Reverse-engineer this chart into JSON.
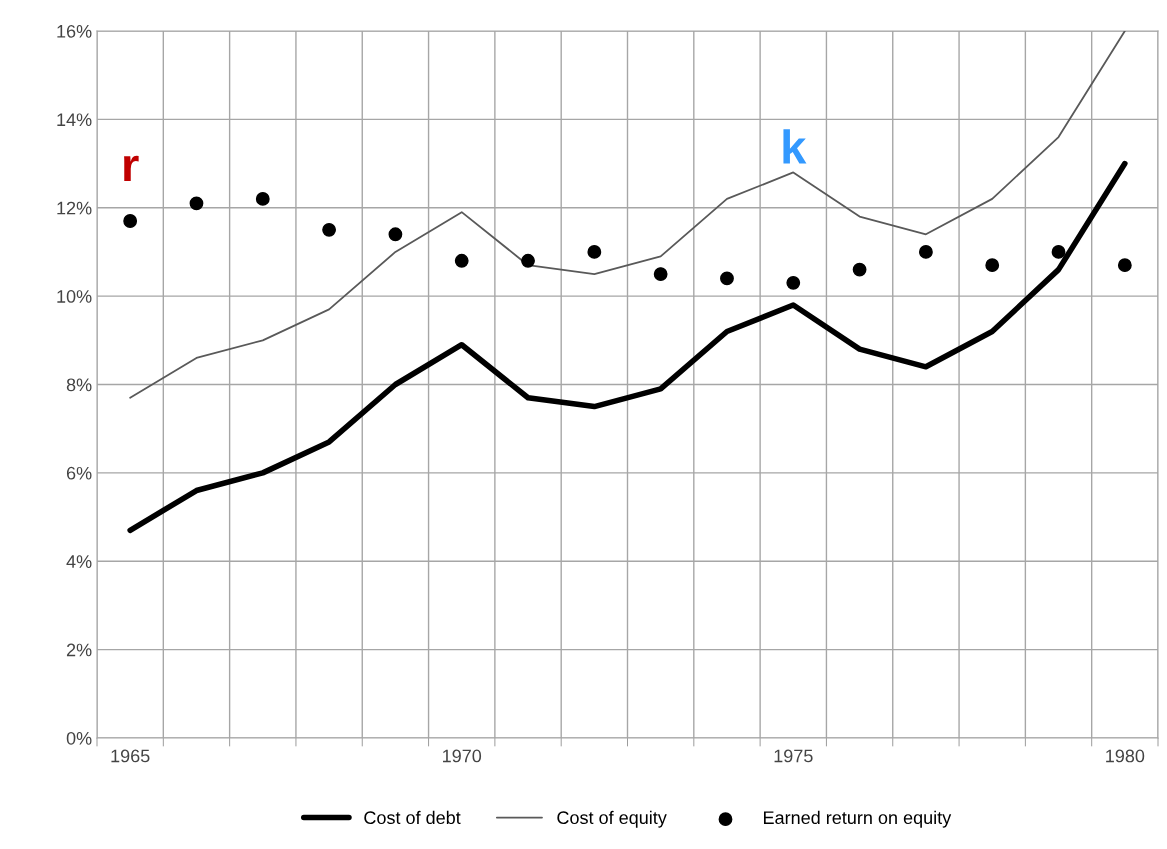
{
  "chart_data": {
    "type": "line",
    "categories": [
      "1965",
      null,
      null,
      null,
      null,
      "1970",
      null,
      null,
      null,
      null,
      "1975",
      null,
      null,
      null,
      null,
      "1980"
    ],
    "series": [
      {
        "name": "Cost of debt",
        "color": "#000000",
        "values": [
          4.7,
          5.6,
          6.0,
          6.7,
          8.0,
          8.9,
          7.7,
          7.5,
          7.9,
          9.2,
          9.8,
          8.8,
          8.4,
          9.2,
          10.6,
          13.0
        ]
      },
      {
        "name": "Cost of equity",
        "color": "#595959",
        "values": [
          7.7,
          8.6,
          9.0,
          9.7,
          11.0,
          11.9,
          10.7,
          10.5,
          10.9,
          12.2,
          12.8,
          11.8,
          11.4,
          12.2,
          13.6,
          16.0
        ]
      },
      {
        "name": "Earned return on equity",
        "type": "scatter",
        "color": "#000000",
        "marker": "circle",
        "values": [
          11.7,
          12.1,
          12.2,
          11.5,
          11.4,
          10.8,
          10.8,
          11.0,
          10.5,
          10.4,
          10.3,
          10.6,
          11.0,
          10.7,
          11.0,
          10.7
        ]
      }
    ],
    "annotations": [
      "r",
      "k"
    ],
    "ylim": [
      0,
      16
    ],
    "yticks": [
      {
        "value": 0,
        "label": "0%"
      },
      {
        "value": 2,
        "label": "2%"
      },
      {
        "value": 4,
        "label": "4%"
      },
      {
        "value": 6,
        "label": "6%"
      },
      {
        "value": 8,
        "label": "8%"
      },
      {
        "value": 10,
        "label": "10%"
      },
      {
        "value": 12,
        "label": "12%"
      },
      {
        "value": 14,
        "label": "14%"
      },
      {
        "value": 16,
        "label": "16%"
      }
    ],
    "grid": true,
    "legend": "bottom"
  }
}
